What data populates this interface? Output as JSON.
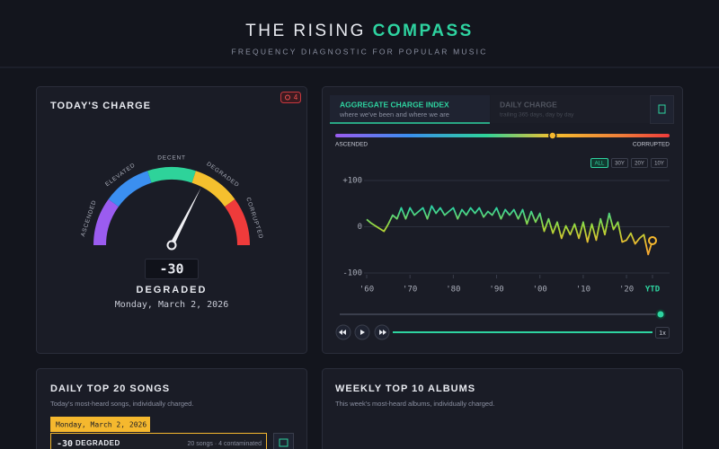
{
  "header": {
    "title": "THE RISING",
    "title_accent": "COMPASS",
    "subtitle": "FREQUENCY DIAGNOSTIC FOR POPULAR MUSIC"
  },
  "charge_panel": {
    "title": "TODAY'S CHARGE",
    "badge": "4",
    "gauge_labels": [
      "ASCENDED",
      "ELEVATED",
      "DECENT",
      "DEGRADED",
      "CORRUPTED"
    ],
    "gauge": {
      "value": -30,
      "range": [
        100,
        -100
      ]
    },
    "status": "DEGRADED",
    "date": "Monday, March 2, 2026"
  },
  "index_panel": {
    "tabs": [
      {
        "title": "AGGREGATE CHARGE INDEX",
        "subtitle": "where we've been and where we are"
      },
      {
        "title": "DAILY CHARGE",
        "subtitle": "trailing 365 days, day by day"
      }
    ],
    "spectrum_labels": [
      "ASCENDED",
      "CORRUPTED"
    ],
    "ranges": [
      "ALL",
      "30Y",
      "20Y",
      "10Y"
    ],
    "chart": {
      "type": "line",
      "x": [
        1960,
        1961,
        1962,
        1963,
        1964,
        1965,
        1966,
        1967,
        1968,
        1969,
        1970,
        1971,
        1972,
        1973,
        1974,
        1975,
        1976,
        1977,
        1978,
        1979,
        1980,
        1981,
        1982,
        1983,
        1984,
        1985,
        1986,
        1987,
        1988,
        1989,
        1990,
        1991,
        1992,
        1993,
        1994,
        1995,
        1996,
        1997,
        1998,
        1999,
        2000,
        2001,
        2002,
        2003,
        2004,
        2005,
        2006,
        2007,
        2008,
        2009,
        2010,
        2011,
        2012,
        2013,
        2014,
        2015,
        2016,
        2017,
        2018,
        2019,
        2020,
        2021,
        2022,
        2023,
        2024,
        2025,
        2026
      ],
      "series": [
        {
          "values": [
            16,
            8,
            2,
            -4,
            -10,
            6,
            25,
            17,
            41,
            17,
            41,
            25,
            33,
            41,
            17,
            45,
            29,
            41,
            25,
            33,
            41,
            17,
            37,
            25,
            41,
            29,
            41,
            21,
            33,
            25,
            41,
            17,
            37,
            25,
            37,
            17,
            37,
            6,
            33,
            10,
            29,
            -10,
            17,
            -14,
            10,
            -25,
            2,
            -17,
            6,
            -25,
            10,
            -33,
            6,
            -29,
            17,
            -17,
            29,
            -6,
            10,
            -33,
            -29,
            -14,
            -37,
            -25,
            -17,
            -60,
            -30
          ]
        }
      ],
      "xlim": [
        1960,
        2026
      ],
      "ylim": [
        -100,
        100
      ],
      "xticks": [
        {
          "value": 1960,
          "label": "'60"
        },
        {
          "value": 1970,
          "label": "'70"
        },
        {
          "value": 1980,
          "label": "'80"
        },
        {
          "value": 1990,
          "label": "'90"
        },
        {
          "value": 2000,
          "label": "'00"
        },
        {
          "value": 2010,
          "label": "'10"
        },
        {
          "value": 2020,
          "label": "'20"
        },
        {
          "value": 2026,
          "label": "YTD"
        }
      ],
      "yticks": [
        {
          "value": 100,
          "label": "+100"
        },
        0,
        -100
      ]
    },
    "speed": "1x"
  },
  "songs_panel": {
    "title": "DAILY TOP 20 SONGS",
    "subtitle": "Today's most-heard songs, individually charged.",
    "date": "Monday, March 2, 2026",
    "value": -30,
    "status": "DEGRADED",
    "summary": "20 songs · 4 contaminated"
  },
  "albums_panel": {
    "title": "WEEKLY TOP 10 ALBUMS",
    "subtitle": "This week's most-heard albums, individually charged."
  }
}
